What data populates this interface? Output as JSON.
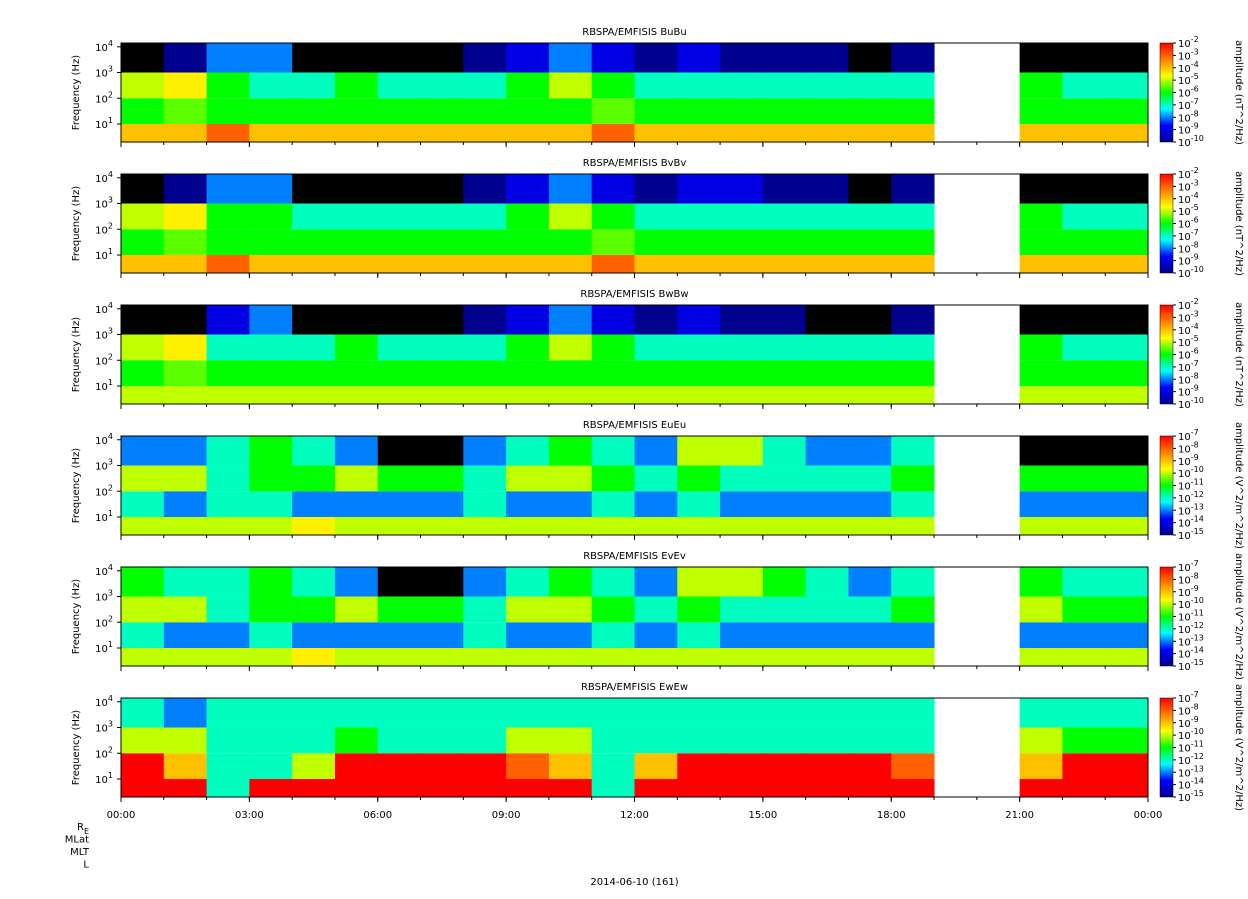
{
  "colorscale": [
    "#00008f",
    "#0000ff",
    "#00ffff",
    "#00ff00",
    "#ffff00",
    "#ff8000",
    "#ff0000"
  ],
  "under_color": "#000000",
  "xaxis": {
    "xlim": [
      0,
      24
    ],
    "x_bins": [
      0,
      1,
      2,
      3,
      4,
      5,
      6,
      7,
      8,
      9,
      10,
      11,
      12,
      13,
      14,
      15,
      16,
      17,
      18,
      19,
      20,
      21,
      22,
      23,
      24
    ],
    "xticks": [
      {
        "value": 0,
        "label": "00:00"
      },
      {
        "value": 3,
        "label": "03:00"
      },
      {
        "value": 6,
        "label": "06:00"
      },
      {
        "value": 9,
        "label": "09:00"
      },
      {
        "value": 12,
        "label": "12:00"
      },
      {
        "value": 15,
        "label": "15:00"
      },
      {
        "value": 18,
        "label": "18:00"
      },
      {
        "value": 21,
        "label": "21:00"
      },
      {
        "value": 24,
        "label": "00:00"
      }
    ]
  },
  "footer": {
    "rows": [
      "R_E",
      "MLat",
      "MLT",
      "L"
    ],
    "date": "2014-06-10 (161)"
  },
  "chart_data": [
    {
      "type": "heatmap",
      "title": "RBSPA/EMFISIS  BuBu",
      "ylabel": "Frequency (Hz)",
      "log_y": true,
      "ylim": [
        2,
        14000
      ],
      "yticks": [
        {
          "value": 10,
          "label": "10^1"
        },
        {
          "value": 100,
          "label": "10^2"
        },
        {
          "value": 1000,
          "label": "10^3"
        },
        {
          "value": 10000,
          "label": "10^4"
        }
      ],
      "y_bins": [
        2,
        10,
        100,
        1000,
        14000
      ],
      "zlabel": "amplitude (nT^2/Hz)",
      "zlim": [
        1e-10,
        0.01
      ],
      "zticks": [
        {
          "value": 0.01,
          "label": "10^-2"
        },
        {
          "value": 0.001,
          "label": "10^-3"
        },
        {
          "value": 0.0001,
          "label": "10^-4"
        },
        {
          "value": 1e-05,
          "label": "10^-5"
        },
        {
          "value": 1e-06,
          "label": "10^-6"
        },
        {
          "value": 1e-07,
          "label": "10^-7"
        },
        {
          "value": 1e-08,
          "label": "10^-8"
        },
        {
          "value": 1e-09,
          "label": "10^-9"
        },
        {
          "value": 1e-10,
          "label": "10^-10"
        }
      ],
      "z": [
        [
          0.0001,
          0.0001,
          0.001,
          0.0001,
          0.0001,
          0.0001,
          0.0001,
          0.0001,
          0.0001,
          0.0001,
          0.0001,
          0.001,
          0.0001,
          0.0001,
          0.0001,
          0.0001,
          0.0001,
          0.0001,
          0.0001,
          null,
          null,
          0.0001,
          0.0001,
          0.0001
        ],
        [
          1e-06,
          3e-06,
          1e-06,
          1e-06,
          1e-06,
          1e-06,
          1e-06,
          1e-06,
          1e-06,
          1e-06,
          1e-06,
          3e-06,
          1e-06,
          1e-06,
          1e-06,
          1e-06,
          1e-06,
          1e-06,
          1e-06,
          null,
          null,
          1e-06,
          1e-06,
          1e-06
        ],
        [
          1e-05,
          3e-05,
          1e-06,
          1e-07,
          1e-07,
          1e-06,
          1e-07,
          1e-07,
          1e-07,
          1e-06,
          1e-05,
          1e-06,
          1e-07,
          1e-07,
          1e-07,
          1e-07,
          1e-07,
          1e-07,
          1e-07,
          null,
          null,
          1e-06,
          1e-07,
          1e-07
        ],
        [
          1e-11,
          1e-10,
          1e-08,
          1e-08,
          1e-11,
          1e-11,
          1e-11,
          1e-11,
          1e-10,
          1e-09,
          1e-08,
          1e-09,
          1e-10,
          1e-09,
          1e-10,
          1e-10,
          1e-10,
          1e-11,
          1e-10,
          null,
          null,
          1e-11,
          1e-11,
          1e-11
        ]
      ]
    },
    {
      "type": "heatmap",
      "title": "RBSPA/EMFISIS  BvBv",
      "ylabel": "Frequency (Hz)",
      "log_y": true,
      "ylim": [
        2,
        14000
      ],
      "yticks": [
        {
          "value": 10,
          "label": "10^1"
        },
        {
          "value": 100,
          "label": "10^2"
        },
        {
          "value": 1000,
          "label": "10^3"
        },
        {
          "value": 10000,
          "label": "10^4"
        }
      ],
      "y_bins": [
        2,
        10,
        100,
        1000,
        14000
      ],
      "zlabel": "amplitude (nT^2/Hz)",
      "zlim": [
        1e-10,
        0.01
      ],
      "zticks": [
        {
          "value": 0.01,
          "label": "10^-2"
        },
        {
          "value": 0.001,
          "label": "10^-3"
        },
        {
          "value": 0.0001,
          "label": "10^-4"
        },
        {
          "value": 1e-05,
          "label": "10^-5"
        },
        {
          "value": 1e-06,
          "label": "10^-6"
        },
        {
          "value": 1e-07,
          "label": "10^-7"
        },
        {
          "value": 1e-08,
          "label": "10^-8"
        },
        {
          "value": 1e-09,
          "label": "10^-9"
        },
        {
          "value": 1e-10,
          "label": "10^-10"
        }
      ],
      "z": [
        [
          0.0001,
          0.0001,
          0.001,
          0.0001,
          0.0001,
          0.0001,
          0.0001,
          0.0001,
          0.0001,
          0.0001,
          0.0001,
          0.001,
          0.0001,
          0.0001,
          0.0001,
          0.0001,
          0.0001,
          0.0001,
          0.0001,
          null,
          null,
          0.0001,
          0.0001,
          0.0001
        ],
        [
          1e-06,
          3e-06,
          1e-06,
          1e-06,
          1e-06,
          1e-06,
          1e-06,
          1e-06,
          1e-06,
          1e-06,
          1e-06,
          3e-06,
          1e-06,
          1e-06,
          1e-06,
          1e-06,
          1e-06,
          1e-06,
          1e-06,
          null,
          null,
          1e-06,
          1e-06,
          1e-06
        ],
        [
          1e-05,
          3e-05,
          1e-06,
          1e-06,
          1e-07,
          1e-07,
          1e-07,
          1e-07,
          1e-07,
          1e-06,
          1e-05,
          1e-06,
          1e-07,
          1e-07,
          1e-07,
          1e-07,
          1e-07,
          1e-07,
          1e-07,
          null,
          null,
          1e-06,
          1e-07,
          1e-07
        ],
        [
          1e-11,
          1e-10,
          1e-08,
          1e-08,
          1e-11,
          1e-11,
          1e-11,
          1e-11,
          1e-10,
          1e-09,
          1e-08,
          1e-09,
          1e-10,
          1e-09,
          1e-09,
          1e-10,
          1e-10,
          1e-11,
          1e-10,
          null,
          null,
          1e-11,
          1e-11,
          1e-11
        ]
      ]
    },
    {
      "type": "heatmap",
      "title": "RBSPA/EMFISIS  BwBw",
      "ylabel": "Frequency (Hz)",
      "log_y": true,
      "ylim": [
        2,
        14000
      ],
      "yticks": [
        {
          "value": 10,
          "label": "10^1"
        },
        {
          "value": 100,
          "label": "10^2"
        },
        {
          "value": 1000,
          "label": "10^3"
        },
        {
          "value": 10000,
          "label": "10^4"
        }
      ],
      "y_bins": [
        2,
        10,
        100,
        1000,
        14000
      ],
      "zlabel": "amplitude (nT^2/Hz)",
      "zlim": [
        1e-10,
        0.01
      ],
      "zticks": [
        {
          "value": 0.01,
          "label": "10^-2"
        },
        {
          "value": 0.001,
          "label": "10^-3"
        },
        {
          "value": 0.0001,
          "label": "10^-4"
        },
        {
          "value": 1e-05,
          "label": "10^-5"
        },
        {
          "value": 1e-06,
          "label": "10^-6"
        },
        {
          "value": 1e-07,
          "label": "10^-7"
        },
        {
          "value": 1e-08,
          "label": "10^-8"
        },
        {
          "value": 1e-09,
          "label": "10^-9"
        },
        {
          "value": 1e-10,
          "label": "10^-10"
        }
      ],
      "z": [
        [
          1e-05,
          1e-05,
          1e-05,
          1e-05,
          1e-05,
          1e-05,
          1e-05,
          1e-05,
          1e-05,
          1e-05,
          1e-05,
          1e-05,
          1e-05,
          1e-05,
          1e-05,
          1e-05,
          1e-05,
          1e-05,
          1e-05,
          null,
          null,
          1e-05,
          1e-05,
          1e-05
        ],
        [
          1e-06,
          3e-06,
          1e-06,
          1e-06,
          1e-06,
          1e-06,
          1e-06,
          1e-06,
          1e-06,
          1e-06,
          1e-06,
          1e-06,
          1e-06,
          1e-06,
          1e-06,
          1e-06,
          1e-06,
          1e-06,
          1e-06,
          null,
          null,
          1e-06,
          1e-06,
          1e-06
        ],
        [
          1e-05,
          3e-05,
          1e-07,
          1e-07,
          1e-07,
          1e-06,
          1e-07,
          1e-07,
          1e-07,
          1e-06,
          1e-05,
          1e-06,
          1e-07,
          1e-07,
          1e-07,
          1e-07,
          1e-07,
          1e-07,
          1e-07,
          null,
          null,
          1e-06,
          1e-07,
          1e-07
        ],
        [
          1e-11,
          1e-11,
          1e-09,
          1e-08,
          1e-11,
          1e-11,
          1e-11,
          1e-11,
          1e-10,
          1e-09,
          1e-08,
          1e-09,
          1e-10,
          1e-09,
          1e-10,
          1e-10,
          1e-11,
          1e-11,
          1e-10,
          null,
          null,
          1e-11,
          1e-11,
          1e-11
        ]
      ]
    },
    {
      "type": "heatmap",
      "title": "RBSPA/EMFISIS  EuEu",
      "ylabel": "Frequency (Hz)",
      "log_y": true,
      "ylim": [
        2,
        14000
      ],
      "yticks": [
        {
          "value": 10,
          "label": "10^1"
        },
        {
          "value": 100,
          "label": "10^2"
        },
        {
          "value": 1000,
          "label": "10^3"
        },
        {
          "value": 10000,
          "label": "10^4"
        }
      ],
      "y_bins": [
        2,
        10,
        100,
        1000,
        14000
      ],
      "zlabel": "amplitude (V^2/m^2/Hz)",
      "zlim": [
        1e-15,
        1e-07
      ],
      "zticks": [
        {
          "value": 1e-07,
          "label": "10^-7"
        },
        {
          "value": 1e-08,
          "label": "10^-8"
        },
        {
          "value": 1e-09,
          "label": "10^-9"
        },
        {
          "value": 1e-10,
          "label": "10^-10"
        },
        {
          "value": 1e-11,
          "label": "10^-11"
        },
        {
          "value": 1e-12,
          "label": "10^-12"
        },
        {
          "value": 1e-13,
          "label": "10^-13"
        },
        {
          "value": 1e-14,
          "label": "10^-14"
        },
        {
          "value": 1e-15,
          "label": "10^-15"
        }
      ],
      "z": [
        [
          1e-10,
          1e-10,
          1e-10,
          1e-10,
          3e-10,
          1e-10,
          1e-10,
          1e-10,
          1e-10,
          1e-10,
          1e-10,
          1e-10,
          1e-10,
          1e-10,
          1e-10,
          1e-10,
          1e-10,
          1e-10,
          1e-10,
          null,
          null,
          1e-10,
          1e-10,
          1e-10
        ],
        [
          1e-12,
          1e-13,
          1e-12,
          1e-12,
          1e-13,
          1e-13,
          1e-13,
          1e-13,
          1e-12,
          1e-13,
          1e-13,
          1e-12,
          1e-13,
          1e-12,
          1e-13,
          1e-13,
          1e-13,
          1e-13,
          1e-12,
          null,
          null,
          1e-13,
          1e-13,
          1e-13
        ],
        [
          1e-10,
          1e-10,
          1e-12,
          1e-11,
          1e-11,
          1e-10,
          1e-11,
          1e-11,
          1e-12,
          1e-10,
          1e-10,
          1e-11,
          1e-12,
          1e-11,
          1e-12,
          1e-12,
          1e-12,
          1e-12,
          1e-11,
          null,
          null,
          1e-11,
          1e-11,
          1e-11
        ],
        [
          1e-13,
          1e-13,
          1e-12,
          1e-11,
          1e-12,
          1e-13,
          1e-16,
          1e-16,
          1e-13,
          1e-12,
          1e-11,
          1e-12,
          1e-13,
          1e-10,
          1e-10,
          1e-12,
          1e-13,
          1e-13,
          1e-12,
          null,
          null,
          1e-16,
          1e-16,
          1e-16
        ]
      ]
    },
    {
      "type": "heatmap",
      "title": "RBSPA/EMFISIS  EvEv",
      "ylabel": "Frequency (Hz)",
      "log_y": true,
      "ylim": [
        2,
        14000
      ],
      "yticks": [
        {
          "value": 10,
          "label": "10^1"
        },
        {
          "value": 100,
          "label": "10^2"
        },
        {
          "value": 1000,
          "label": "10^3"
        },
        {
          "value": 10000,
          "label": "10^4"
        }
      ],
      "y_bins": [
        2,
        10,
        100,
        1000,
        14000
      ],
      "zlabel": "amplitude (V^2/m^2/Hz)",
      "zlim": [
        1e-15,
        1e-07
      ],
      "zticks": [
        {
          "value": 1e-07,
          "label": "10^-7"
        },
        {
          "value": 1e-08,
          "label": "10^-8"
        },
        {
          "value": 1e-09,
          "label": "10^-9"
        },
        {
          "value": 1e-10,
          "label": "10^-10"
        },
        {
          "value": 1e-11,
          "label": "10^-11"
        },
        {
          "value": 1e-12,
          "label": "10^-12"
        },
        {
          "value": 1e-13,
          "label": "10^-13"
        },
        {
          "value": 1e-14,
          "label": "10^-14"
        },
        {
          "value": 1e-15,
          "label": "10^-15"
        }
      ],
      "z": [
        [
          1e-10,
          1e-10,
          1e-10,
          1e-10,
          3e-10,
          1e-10,
          1e-10,
          1e-10,
          1e-10,
          1e-10,
          1e-10,
          1e-10,
          1e-10,
          1e-10,
          1e-10,
          1e-10,
          1e-10,
          1e-10,
          1e-10,
          null,
          null,
          1e-10,
          1e-10,
          1e-10
        ],
        [
          1e-12,
          1e-13,
          1e-13,
          1e-12,
          1e-13,
          1e-13,
          1e-13,
          1e-13,
          1e-12,
          1e-13,
          1e-13,
          1e-12,
          1e-13,
          1e-12,
          1e-13,
          1e-13,
          1e-13,
          1e-13,
          1e-13,
          null,
          null,
          1e-13,
          1e-13,
          1e-13
        ],
        [
          1e-10,
          1e-10,
          1e-12,
          1e-11,
          1e-11,
          1e-10,
          1e-11,
          1e-11,
          1e-12,
          1e-10,
          1e-10,
          1e-11,
          1e-12,
          1e-11,
          1e-12,
          1e-12,
          1e-12,
          1e-12,
          1e-11,
          null,
          null,
          1e-10,
          1e-11,
          1e-11
        ],
        [
          1e-11,
          1e-12,
          1e-12,
          1e-11,
          1e-12,
          1e-13,
          1e-16,
          1e-16,
          1e-13,
          1e-12,
          1e-11,
          1e-12,
          1e-13,
          1e-10,
          1e-10,
          1e-11,
          1e-12,
          1e-13,
          1e-12,
          null,
          null,
          1e-11,
          1e-12,
          1e-12
        ]
      ]
    },
    {
      "type": "heatmap",
      "title": "RBSPA/EMFISIS  EwEw",
      "ylabel": "Frequency (Hz)",
      "log_y": true,
      "ylim": [
        2,
        14000
      ],
      "yticks": [
        {
          "value": 10,
          "label": "10^1"
        },
        {
          "value": 100,
          "label": "10^2"
        },
        {
          "value": 1000,
          "label": "10^3"
        },
        {
          "value": 10000,
          "label": "10^4"
        }
      ],
      "y_bins": [
        2,
        10,
        100,
        1000,
        14000
      ],
      "zlabel": "amplitude (V^2/m^2/Hz)",
      "zlim": [
        1e-15,
        1e-07
      ],
      "zticks": [
        {
          "value": 1e-07,
          "label": "10^-7"
        },
        {
          "value": 1e-08,
          "label": "10^-8"
        },
        {
          "value": 1e-09,
          "label": "10^-9"
        },
        {
          "value": 1e-10,
          "label": "10^-10"
        },
        {
          "value": 1e-11,
          "label": "10^-11"
        },
        {
          "value": 1e-12,
          "label": "10^-12"
        },
        {
          "value": 1e-13,
          "label": "10^-13"
        },
        {
          "value": 1e-14,
          "label": "10^-14"
        },
        {
          "value": 1e-15,
          "label": "10^-15"
        }
      ],
      "z": [
        [
          1e-07,
          1e-07,
          1e-12,
          1e-07,
          1e-07,
          1e-07,
          1e-07,
          1e-07,
          1e-07,
          1e-07,
          1e-07,
          1e-12,
          1e-07,
          1e-07,
          1e-07,
          1e-07,
          1e-07,
          1e-07,
          1e-07,
          null,
          null,
          1e-07,
          1e-07,
          1e-07
        ],
        [
          1e-07,
          1e-09,
          1e-12,
          1e-12,
          1e-10,
          1e-07,
          1e-07,
          1e-07,
          1e-07,
          1e-08,
          1e-09,
          1e-12,
          1e-09,
          1e-07,
          1e-07,
          1e-07,
          1e-07,
          1e-07,
          1e-08,
          null,
          null,
          1e-09,
          1e-07,
          1e-07
        ],
        [
          1e-10,
          1e-10,
          1e-12,
          1e-12,
          1e-12,
          1e-11,
          1e-12,
          1e-12,
          1e-12,
          1e-10,
          1e-10,
          1e-12,
          1e-12,
          1e-12,
          1e-12,
          1e-12,
          1e-12,
          1e-12,
          1e-12,
          null,
          null,
          1e-10,
          1e-11,
          1e-11
        ],
        [
          1e-12,
          1e-13,
          1e-12,
          1e-12,
          1e-12,
          1e-12,
          1e-12,
          1e-12,
          1e-12,
          1e-12,
          1e-12,
          1e-12,
          1e-12,
          1e-12,
          1e-12,
          1e-12,
          1e-12,
          1e-12,
          1e-12,
          null,
          null,
          1e-12,
          1e-12,
          1e-12
        ]
      ]
    }
  ]
}
